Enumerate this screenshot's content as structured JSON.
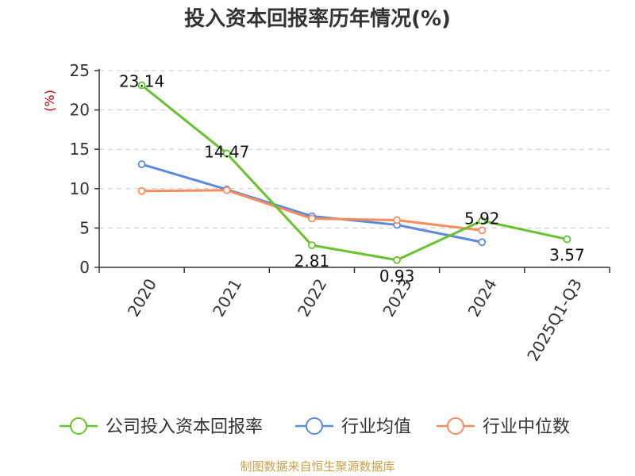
{
  "chart_data": {
    "type": "line",
    "title": "投入资本回报率历年情况(%)",
    "ylabel": "(%)",
    "ylim": [
      0,
      25
    ],
    "yticks": [
      0,
      5,
      10,
      15,
      20,
      25
    ],
    "categories": [
      "2020",
      "2021",
      "2022",
      "2023",
      "2024",
      "2025Q1-Q3"
    ],
    "grid": true,
    "legend_position": "bottom",
    "series": [
      {
        "name": "公司投入资本回报率",
        "color": "#66c22e",
        "values": [
          23.14,
          14.47,
          2.81,
          0.93,
          5.92,
          3.57
        ],
        "labels": [
          "23.14",
          "14.47",
          "2.81",
          "0.93",
          "5.92",
          "3.57"
        ]
      },
      {
        "name": "行业均值",
        "color": "#5b8bd8",
        "values": [
          13.1,
          9.9,
          6.5,
          5.4,
          3.2,
          null
        ]
      },
      {
        "name": "行业中位数",
        "color": "#f58d5e",
        "values": [
          9.7,
          9.8,
          6.2,
          6.0,
          4.7,
          null
        ]
      }
    ]
  },
  "source": "制图数据来自恒生聚源数据库",
  "colors": {
    "grid": "#c8c8c8",
    "axis": "#333333",
    "unit": "#cc0000",
    "source": "#c9a04a"
  }
}
